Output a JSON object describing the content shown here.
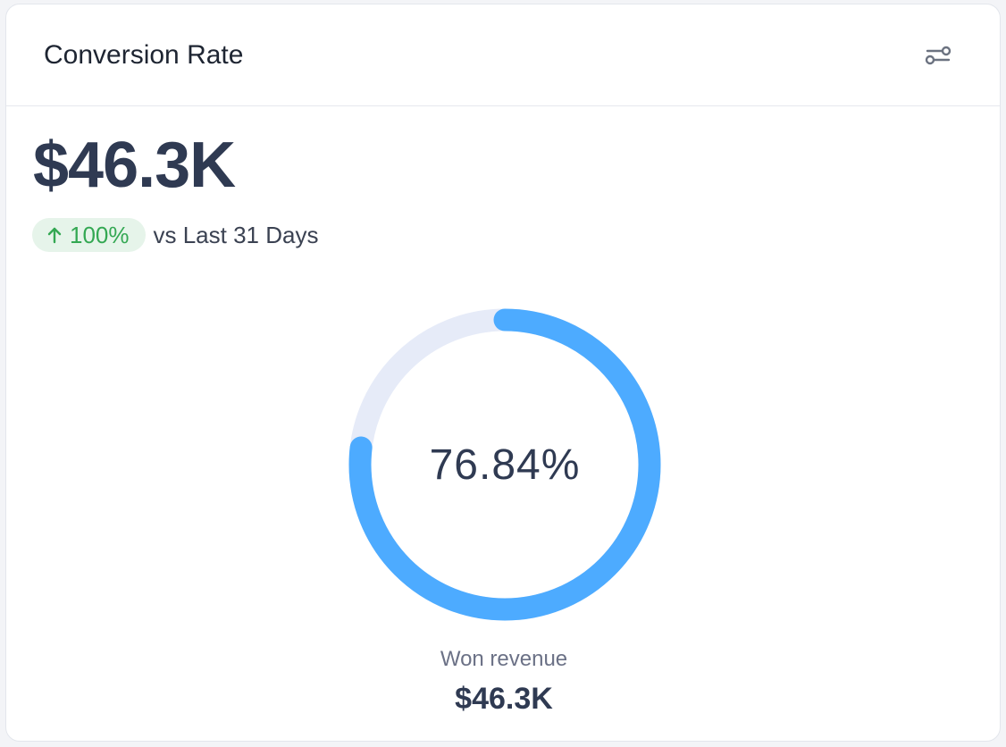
{
  "card": {
    "title": "Conversion Rate",
    "filter_icon": "sliders-icon"
  },
  "summary": {
    "value": "$46.3K",
    "trend": {
      "direction": "up",
      "arrow_icon": "arrow-up-icon",
      "percent": "100%",
      "comparison": "vs Last 31 Days",
      "color": "#34a853",
      "background": "#e6f4ea"
    }
  },
  "chart_data": {
    "type": "pie",
    "style": "donut",
    "center_label": "76.84%",
    "value_percent": 76.84,
    "progress_color": "#4dabff",
    "track_color": "#e6ebf8",
    "legend": {
      "label": "Won revenue",
      "value": "$46.3K"
    }
  }
}
